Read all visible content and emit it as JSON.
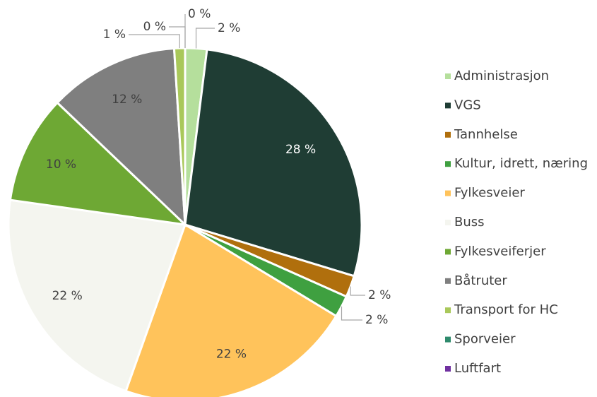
{
  "chart_data": {
    "type": "pie",
    "categories": [
      "Administrasjon",
      "VGS",
      "Tannhelse",
      "Kultur, idrett, næring",
      "Fylkesveier",
      "Buss",
      "Fylkesveiferjer",
      "Båtruter",
      "Transport for HC",
      "Sporveier",
      "Luftfart"
    ],
    "values": [
      2,
      28,
      2,
      2,
      22,
      22,
      10,
      12,
      1,
      0,
      0
    ],
    "value_labels": [
      "2 %",
      "28 %",
      "2 %",
      "2 %",
      "22 %",
      "22 %",
      "10 %",
      "12 %",
      "1 %",
      "0 %",
      "0 %"
    ],
    "colors": [
      "#b5df9c",
      "#1f3d34",
      "#b06f0d",
      "#3fa040",
      "#ffc35b",
      "#f4f5ef",
      "#6ea834",
      "#7f7f7f",
      "#a9c85a",
      "#2e8a6c",
      "#7030a0"
    ],
    "legend": "right"
  }
}
